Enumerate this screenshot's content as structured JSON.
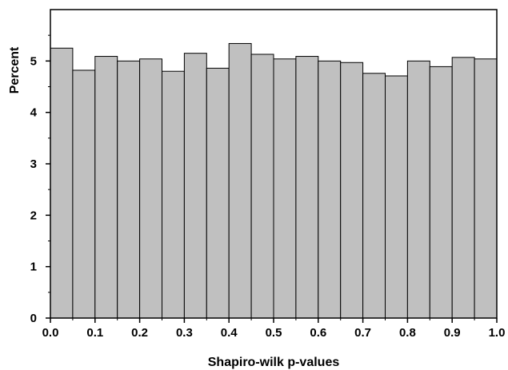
{
  "chart_data": {
    "type": "bar",
    "xlabel": "Shapiro-wilk p-values",
    "ylabel": "Percent",
    "xlim": [
      0.0,
      1.0
    ],
    "ylim": [
      0,
      6
    ],
    "bin_width": 0.05,
    "bins": [
      {
        "x0": 0.0,
        "x1": 0.05,
        "value": 5.25
      },
      {
        "x0": 0.05,
        "x1": 0.1,
        "value": 4.82
      },
      {
        "x0": 0.1,
        "x1": 0.15,
        "value": 5.09
      },
      {
        "x0": 0.15,
        "x1": 0.2,
        "value": 5.0
      },
      {
        "x0": 0.2,
        "x1": 0.25,
        "value": 5.04
      },
      {
        "x0": 0.25,
        "x1": 0.3,
        "value": 4.8
      },
      {
        "x0": 0.3,
        "x1": 0.35,
        "value": 5.15
      },
      {
        "x0": 0.35,
        "x1": 0.4,
        "value": 4.86
      },
      {
        "x0": 0.4,
        "x1": 0.45,
        "value": 5.34
      },
      {
        "x0": 0.45,
        "x1": 0.5,
        "value": 5.13
      },
      {
        "x0": 0.5,
        "x1": 0.55,
        "value": 5.04
      },
      {
        "x0": 0.55,
        "x1": 0.6,
        "value": 5.09
      },
      {
        "x0": 0.6,
        "x1": 0.65,
        "value": 5.0
      },
      {
        "x0": 0.65,
        "x1": 0.7,
        "value": 4.97
      },
      {
        "x0": 0.7,
        "x1": 0.75,
        "value": 4.76
      },
      {
        "x0": 0.75,
        "x1": 0.8,
        "value": 4.71
      },
      {
        "x0": 0.8,
        "x1": 0.85,
        "value": 5.0
      },
      {
        "x0": 0.85,
        "x1": 0.9,
        "value": 4.89
      },
      {
        "x0": 0.9,
        "x1": 0.95,
        "value": 5.07
      },
      {
        "x0": 0.95,
        "x1": 1.0,
        "value": 5.04
      }
    ],
    "x_ticks": [
      "0.0",
      "0.1",
      "0.2",
      "0.3",
      "0.4",
      "0.5",
      "0.6",
      "0.7",
      "0.8",
      "0.9",
      "1.0"
    ],
    "y_ticks": [
      "0",
      "1",
      "2",
      "3",
      "4",
      "5"
    ],
    "grid": false,
    "legend": "none",
    "colors": {
      "bar_fill": "#c0c0c0",
      "bar_stroke": "#000000",
      "axis": "#000000",
      "background": "#ffffff"
    }
  }
}
